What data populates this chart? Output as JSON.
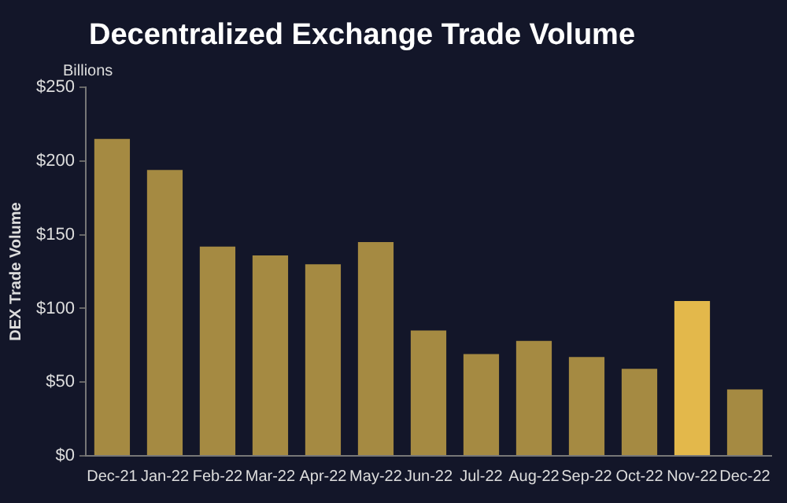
{
  "chart_data": {
    "type": "bar",
    "title": "Decentralized Exchange Trade Volume",
    "ylabel": "DEX Trade Volume",
    "annotations": [
      "Billions"
    ],
    "categories": [
      "Dec-21",
      "Jan-22",
      "Feb-22",
      "Mar-22",
      "Apr-22",
      "May-22",
      "Jun-22",
      "Jul-22",
      "Aug-22",
      "Sep-22",
      "Oct-22",
      "Nov-22",
      "Dec-22"
    ],
    "values": [
      215,
      194,
      142,
      136,
      130,
      145,
      85,
      69,
      78,
      67,
      59,
      105,
      45
    ],
    "colors": [
      "#a58a42",
      "#a58a42",
      "#a58a42",
      "#a58a42",
      "#a58a42",
      "#a58a42",
      "#a58a42",
      "#a58a42",
      "#a58a42",
      "#a58a42",
      "#a58a42",
      "#e3b84b",
      "#a58a42"
    ],
    "ylim": [
      0,
      250
    ],
    "yticks": [
      {
        "value": 0,
        "label": "$0"
      },
      {
        "value": 50,
        "label": "$50"
      },
      {
        "value": 100,
        "label": "$100"
      },
      {
        "value": 150,
        "label": "$150"
      },
      {
        "value": 200,
        "label": "$200"
      },
      {
        "value": 250,
        "label": "$250"
      }
    ],
    "grid": false,
    "legend": false
  }
}
